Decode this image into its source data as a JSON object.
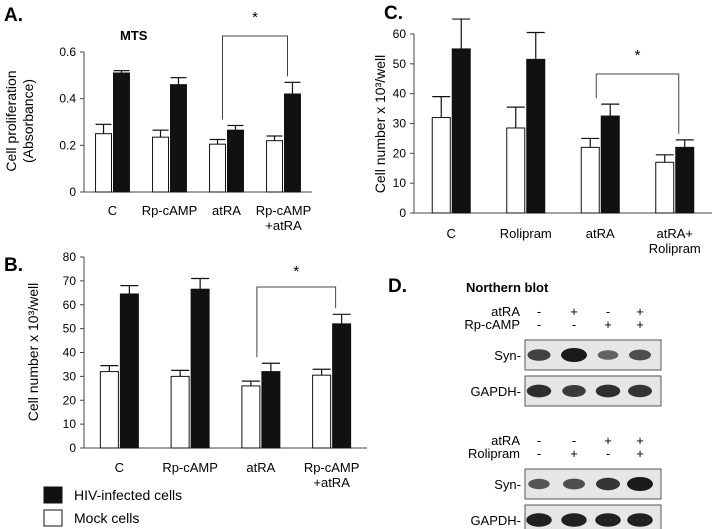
{
  "colors": {
    "hiv": "#111111",
    "mock": "#ffffff",
    "axis": "#444444",
    "blot_bg": "#e6e6e6",
    "band": "#1a1a1a"
  },
  "chart_data": [
    {
      "id": "A",
      "type": "bar",
      "panel_label": "A.",
      "title": "MTS",
      "ylabel_lines": [
        "Cell proliferation",
        "(Absorbance)"
      ],
      "ylim": [
        0,
        0.6
      ],
      "yticks": [
        0,
        0.2,
        0.4,
        0.6
      ],
      "ytick_labels": [
        "0",
        "0.2",
        "0.4",
        "0.6"
      ],
      "categories": [
        [
          "C"
        ],
        [
          "Rp-cAMP"
        ],
        [
          "atRA"
        ],
        [
          "Rp-cAMP",
          "+atRA"
        ]
      ],
      "series": [
        {
          "name": "Mock cells",
          "values": [
            0.25,
            0.235,
            0.205,
            0.22
          ],
          "errors": [
            0.04,
            0.03,
            0.02,
            0.02
          ]
        },
        {
          "name": "HIV-infected cells",
          "values": [
            0.51,
            0.46,
            0.265,
            0.42
          ],
          "errors": [
            0.01,
            0.03,
            0.02,
            0.05
          ]
        }
      ],
      "significance": {
        "from": 2,
        "to": 3,
        "label": "*"
      }
    },
    {
      "id": "B",
      "type": "bar",
      "panel_label": "B.",
      "title": "",
      "ylabel_lines": [
        "Cell number x 10³/well"
      ],
      "ylim": [
        0,
        80
      ],
      "yticks": [
        0,
        10,
        20,
        30,
        40,
        50,
        60,
        70,
        80
      ],
      "ytick_labels": [
        "0",
        "10",
        "20",
        "30",
        "40",
        "50",
        "60",
        "70",
        "80"
      ],
      "categories": [
        [
          "C"
        ],
        [
          "Rp-cAMP"
        ],
        [
          "atRA"
        ],
        [
          "Rp-cAMP",
          "+atRA"
        ]
      ],
      "series": [
        {
          "name": "Mock cells",
          "values": [
            32,
            30,
            26,
            30.5
          ],
          "errors": [
            2.5,
            2.5,
            2,
            2.5
          ]
        },
        {
          "name": "HIV-infected cells",
          "values": [
            64.5,
            66.5,
            32,
            52
          ],
          "errors": [
            3.5,
            4.5,
            3.5,
            4
          ]
        }
      ],
      "significance": {
        "from": 2,
        "to": 3,
        "label": "*"
      }
    },
    {
      "id": "C",
      "type": "bar",
      "panel_label": "C.",
      "title": "",
      "ylabel_lines": [
        "Cell number x 10³/well"
      ],
      "ylim": [
        0,
        60
      ],
      "yticks": [
        0,
        10,
        20,
        30,
        40,
        50,
        60
      ],
      "ytick_labels": [
        "0",
        "10",
        "20",
        "30",
        "40",
        "50",
        "60"
      ],
      "categories": [
        [
          "C"
        ],
        [
          "Rolipram"
        ],
        [
          "atRA"
        ],
        [
          "atRA+",
          "Rolipram"
        ]
      ],
      "series": [
        {
          "name": "Mock cells",
          "values": [
            32,
            28.5,
            22,
            17
          ],
          "errors": [
            7,
            7,
            3,
            2.5
          ]
        },
        {
          "name": "HIV-infected cells",
          "values": [
            55,
            51.5,
            32.5,
            22
          ],
          "errors": [
            10,
            9,
            4,
            2.5
          ]
        }
      ],
      "significance": {
        "from": 2,
        "to": 3,
        "label": "*"
      }
    }
  ],
  "legend": [
    {
      "key": "hiv",
      "label": "HIV-infected cells"
    },
    {
      "key": "mock",
      "label": "Mock cells"
    }
  ],
  "northern": {
    "panel_label": "D.",
    "title": "Northern blot",
    "blot1": {
      "treat_rows": [
        {
          "label": "atRA",
          "signs": [
            "-",
            "+",
            "-",
            "+"
          ]
        },
        {
          "label": "Rp-cAMP",
          "signs": [
            "-",
            "-",
            "+",
            "+"
          ]
        }
      ],
      "gel_rows": [
        {
          "label": "Syn-",
          "intensities": [
            0.7,
            1.0,
            0.45,
            0.6
          ]
        },
        {
          "label": "GAPDH-",
          "intensities": [
            0.85,
            0.75,
            0.85,
            0.8
          ]
        }
      ]
    },
    "blot2": {
      "treat_rows": [
        {
          "label": "atRA",
          "signs": [
            "-",
            "-",
            "+",
            "+"
          ]
        },
        {
          "label": "Rolipram",
          "signs": [
            "-",
            "+",
            "-",
            "+"
          ]
        }
      ],
      "gel_rows": [
        {
          "label": "Syn-",
          "intensities": [
            0.55,
            0.6,
            0.8,
            1.0
          ]
        },
        {
          "label": "GAPDH-",
          "intensities": [
            0.95,
            0.95,
            0.95,
            0.95
          ]
        }
      ]
    }
  }
}
